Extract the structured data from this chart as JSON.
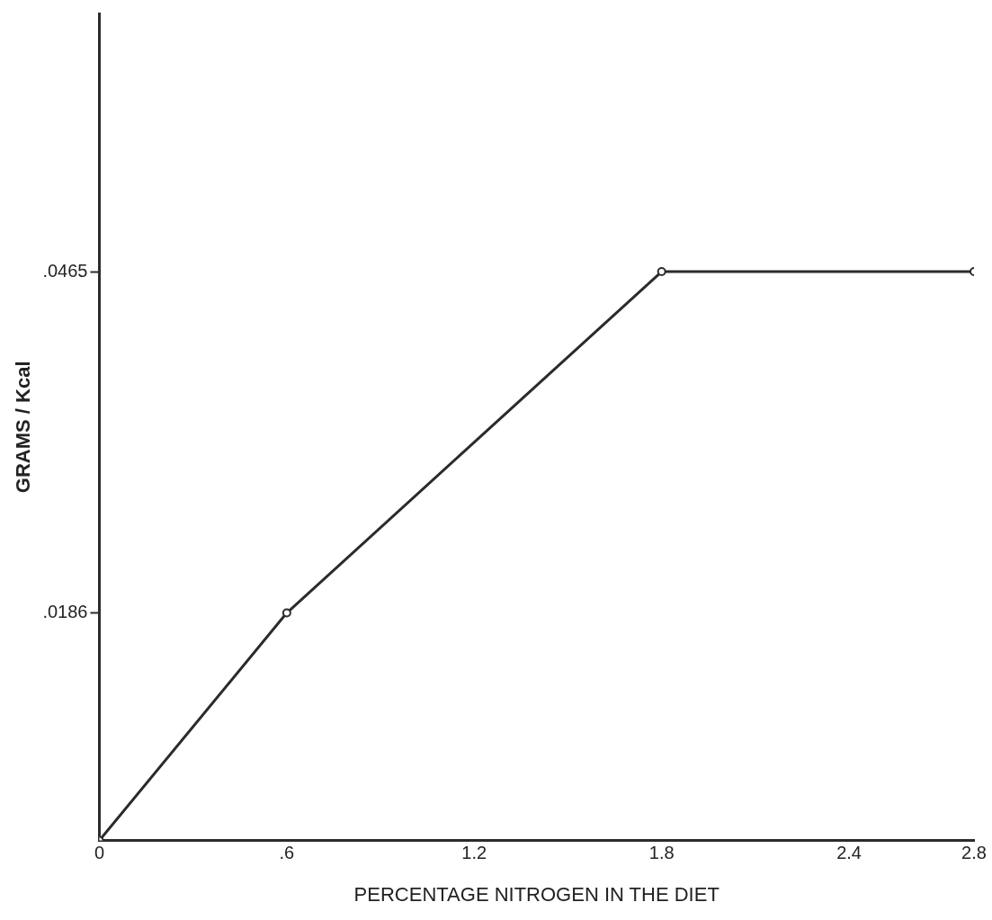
{
  "chart_data": {
    "type": "line",
    "xlabel": "PERCENTAGE NITROGEN IN THE DIET",
    "ylabel": "GRAMS / Kcal",
    "x": [
      0,
      0.6,
      1.8,
      2.8
    ],
    "series": [
      {
        "color": "#2b2b2b",
        "values": [
          0,
          0.0186,
          0.0465,
          0.0465
        ]
      }
    ],
    "xlim": [
      0,
      2.8
    ],
    "xticks": [
      0,
      {
        "value": 0.6,
        "label": ".6"
      },
      1.2,
      1.8,
      2.4,
      2.8
    ],
    "ylim": [
      0,
      0.0676
    ],
    "yticks": [
      {
        "value": 0.0186,
        "label": ".0186"
      },
      {
        "value": 0.0465,
        "label": ".0465"
      }
    ],
    "marker": "circle",
    "line_style": "solid"
  }
}
